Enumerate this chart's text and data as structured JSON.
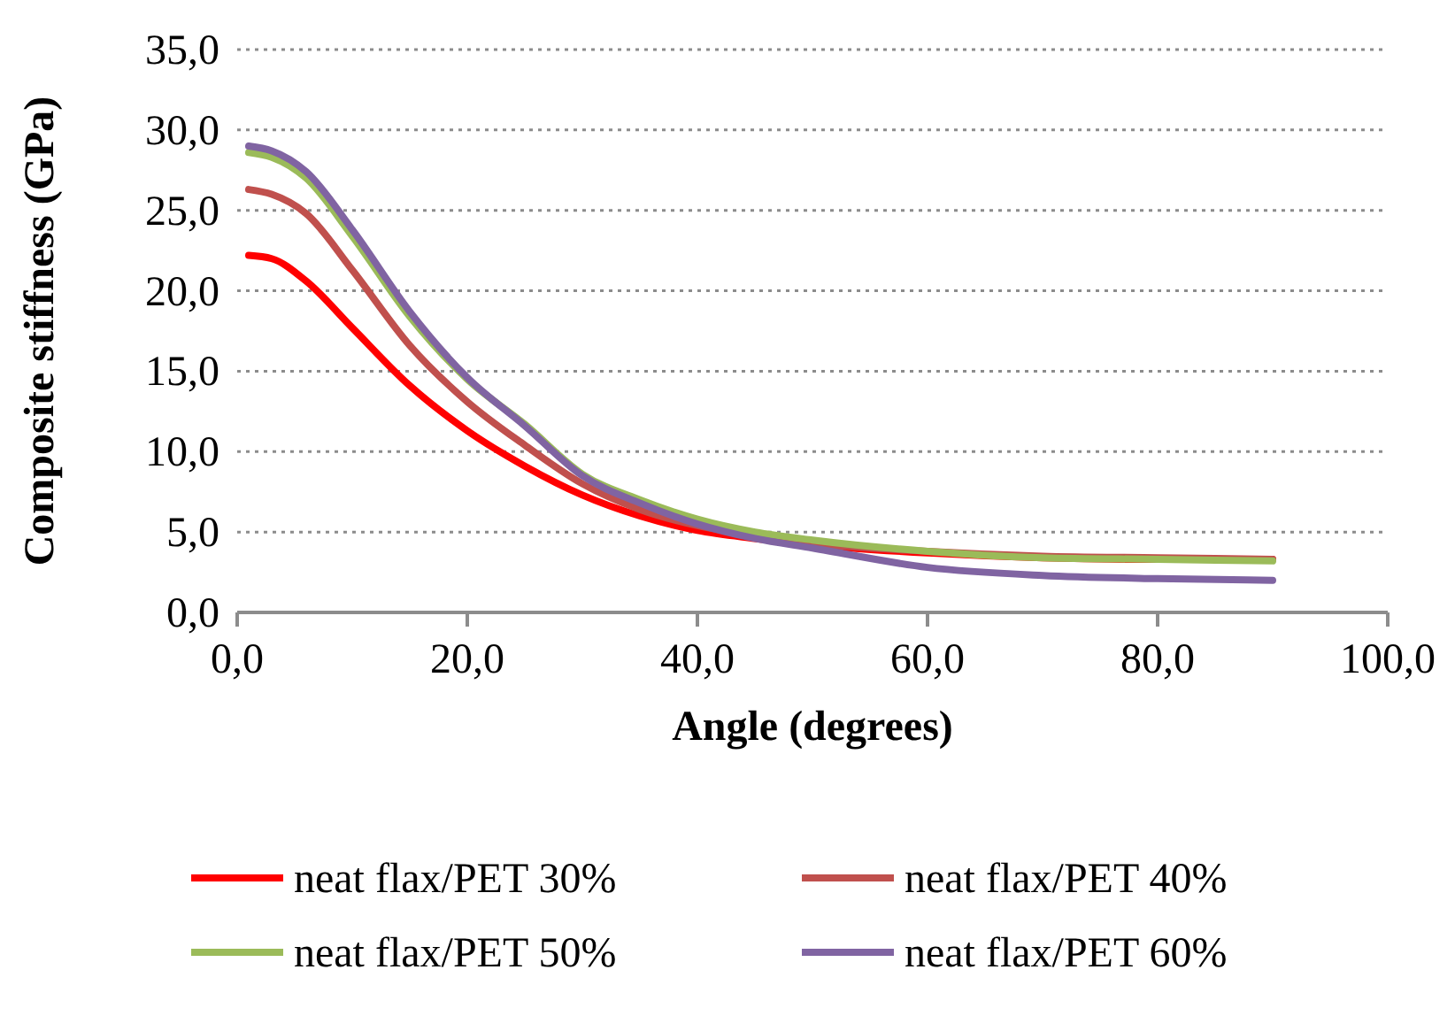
{
  "chart_data": {
    "type": "line",
    "xlabel": "Angle (degrees)",
    "ylabel": "Composite stiffness (GPa)",
    "xlim": [
      0,
      100
    ],
    "xticks": [
      {
        "value": 0,
        "label": "0,0"
      },
      {
        "value": 20,
        "label": "20,0"
      },
      {
        "value": 40,
        "label": "40,0"
      },
      {
        "value": 60,
        "label": "60,0"
      },
      {
        "value": 80,
        "label": "80,0"
      },
      {
        "value": 100,
        "label": "100,0"
      }
    ],
    "ylim": [
      0,
      35
    ],
    "yticks": [
      {
        "value": 0,
        "label": "0,0"
      },
      {
        "value": 5,
        "label": "5,0"
      },
      {
        "value": 10,
        "label": "10,0"
      },
      {
        "value": 15,
        "label": "15,0"
      },
      {
        "value": 20,
        "label": "20,0"
      },
      {
        "value": 25,
        "label": "25,0"
      },
      {
        "value": 30,
        "label": "30,0"
      },
      {
        "value": 35,
        "label": "35,0"
      }
    ],
    "grid": "y",
    "legend": "bottom",
    "marker": "none",
    "line_style": "solid",
    "x": [
      1,
      3,
      6,
      10,
      15,
      20,
      25,
      30,
      35,
      40,
      45,
      50,
      60,
      70,
      80,
      90
    ],
    "series": [
      {
        "name": "neat flax/PET 30%",
        "color": "#ff0000",
        "values": [
          22.2,
          22.0,
          20.6,
          17.7,
          14.1,
          11.3,
          9.1,
          7.3,
          6.0,
          5.1,
          4.6,
          4.2,
          3.7,
          3.4,
          3.3,
          3.3
        ]
      },
      {
        "name": "neat flax/PET 40%",
        "color": "#c0504d",
        "values": [
          26.3,
          26.0,
          24.8,
          21.3,
          16.6,
          13.1,
          10.4,
          8.0,
          6.4,
          5.4,
          4.8,
          4.3,
          3.8,
          3.5,
          3.4,
          3.3
        ]
      },
      {
        "name": "neat flax/PET 50%",
        "color": "#9bbb59",
        "values": [
          28.6,
          28.3,
          27.0,
          23.4,
          18.4,
          14.5,
          11.7,
          8.6,
          7.0,
          5.8,
          5.0,
          4.5,
          3.8,
          3.4,
          3.3,
          3.2
        ]
      },
      {
        "name": "neat flax/PET 60%",
        "color": "#8064a2",
        "values": [
          29.0,
          28.7,
          27.4,
          23.8,
          18.7,
          14.6,
          11.6,
          8.5,
          6.8,
          5.5,
          4.6,
          4.0,
          2.8,
          2.3,
          2.1,
          2.0
        ]
      }
    ]
  }
}
